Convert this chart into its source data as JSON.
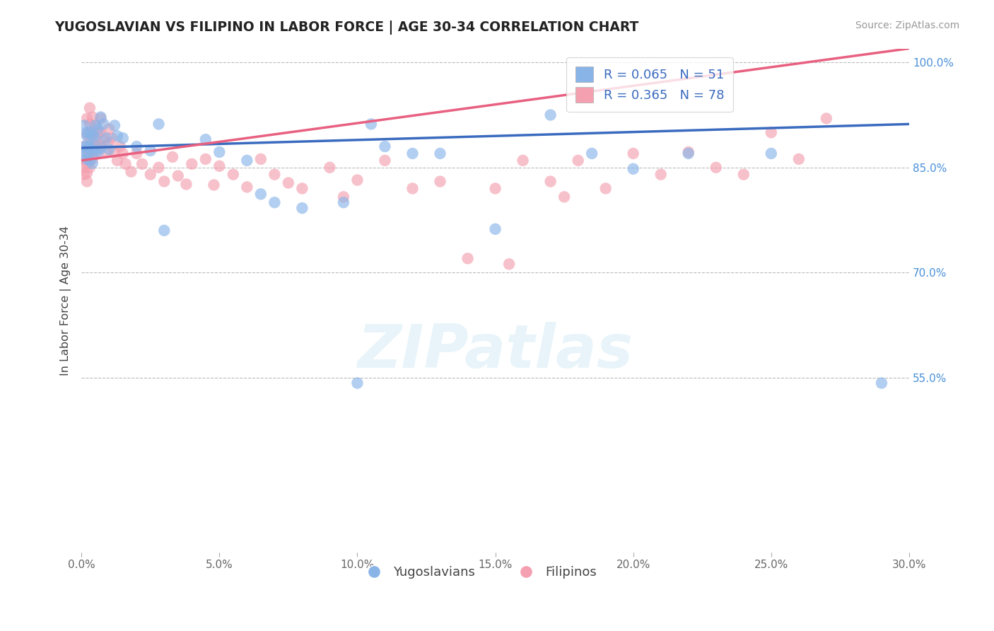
{
  "title": "YUGOSLAVIAN VS FILIPINO IN LABOR FORCE | AGE 30-34 CORRELATION CHART",
  "source": "Source: ZipAtlas.com",
  "ylabel": "In Labor Force | Age 30-34",
  "xlim": [
    0.0,
    0.3
  ],
  "ylim": [
    0.3,
    1.02
  ],
  "xticks": [
    0.0,
    0.05,
    0.1,
    0.15,
    0.2,
    0.25,
    0.3
  ],
  "xticklabels": [
    "0.0%",
    "5.0%",
    "10.0%",
    "15.0%",
    "20.0%",
    "25.0%",
    "30.0%"
  ],
  "yticks_right": [
    0.55,
    0.7,
    0.85,
    1.0
  ],
  "yticklabels_right": [
    "55.0%",
    "70.0%",
    "85.0%",
    "100.0%"
  ],
  "grid_yticks": [
    0.55,
    0.7,
    0.85,
    1.0
  ],
  "legend_yug": "Yugoslavians",
  "legend_fil": "Filipinos",
  "R_yug": "0.065",
  "N_yug": "51",
  "R_fil": "0.365",
  "N_fil": "78",
  "yug_color": "#89b4e8",
  "fil_color": "#f4a0b0",
  "yug_line_color": "#3a6bbf",
  "fil_line_color": "#e86080",
  "watermark_text": "ZIPatlas",
  "yug_x": [
    0.001,
    0.001,
    0.001,
    0.002,
    0.002,
    0.002,
    0.002,
    0.002,
    0.003,
    0.003,
    0.003,
    0.003,
    0.004,
    0.004,
    0.004,
    0.005,
    0.005,
    0.005,
    0.006,
    0.006,
    0.007,
    0.007,
    0.008,
    0.009,
    0.01,
    0.012,
    0.013,
    0.015,
    0.02,
    0.025,
    0.028,
    0.03,
    0.045,
    0.05,
    0.06,
    0.065,
    0.07,
    0.08,
    0.095,
    0.1,
    0.105,
    0.11,
    0.12,
    0.13,
    0.15,
    0.17,
    0.185,
    0.2,
    0.22,
    0.25,
    0.29
  ],
  "yug_y": [
    0.88,
    0.91,
    0.87,
    0.895,
    0.88,
    0.862,
    0.9,
    0.87,
    0.9,
    0.88,
    0.86,
    0.878,
    0.895,
    0.875,
    0.856,
    0.91,
    0.892,
    0.874,
    0.905,
    0.872,
    0.922,
    0.878,
    0.912,
    0.892,
    0.876,
    0.91,
    0.895,
    0.892,
    0.88,
    0.874,
    0.912,
    0.76,
    0.89,
    0.872,
    0.86,
    0.812,
    0.8,
    0.792,
    0.8,
    0.542,
    0.912,
    0.88,
    0.87,
    0.87,
    0.762,
    0.925,
    0.87,
    0.848,
    0.87,
    0.87,
    0.542
  ],
  "fil_x": [
    0.001,
    0.001,
    0.001,
    0.001,
    0.002,
    0.002,
    0.002,
    0.002,
    0.002,
    0.002,
    0.003,
    0.003,
    0.003,
    0.003,
    0.003,
    0.004,
    0.004,
    0.004,
    0.004,
    0.005,
    0.005,
    0.005,
    0.006,
    0.006,
    0.007,
    0.007,
    0.007,
    0.008,
    0.009,
    0.01,
    0.01,
    0.011,
    0.012,
    0.013,
    0.014,
    0.015,
    0.016,
    0.018,
    0.02,
    0.022,
    0.025,
    0.028,
    0.03,
    0.033,
    0.035,
    0.038,
    0.04,
    0.045,
    0.048,
    0.05,
    0.055,
    0.06,
    0.065,
    0.07,
    0.075,
    0.08,
    0.09,
    0.095,
    0.1,
    0.11,
    0.12,
    0.13,
    0.14,
    0.15,
    0.155,
    0.16,
    0.17,
    0.175,
    0.18,
    0.19,
    0.2,
    0.21,
    0.22,
    0.23,
    0.24,
    0.25,
    0.26,
    0.27
  ],
  "fil_y": [
    0.88,
    0.862,
    0.85,
    0.84,
    0.92,
    0.898,
    0.876,
    0.855,
    0.842,
    0.83,
    0.935,
    0.912,
    0.892,
    0.87,
    0.85,
    0.922,
    0.9,
    0.882,
    0.862,
    0.91,
    0.888,
    0.87,
    0.9,
    0.882,
    0.92,
    0.9,
    0.882,
    0.89,
    0.872,
    0.905,
    0.885,
    0.892,
    0.872,
    0.86,
    0.88,
    0.87,
    0.855,
    0.844,
    0.87,
    0.855,
    0.84,
    0.85,
    0.83,
    0.865,
    0.838,
    0.826,
    0.855,
    0.862,
    0.825,
    0.852,
    0.84,
    0.822,
    0.862,
    0.84,
    0.828,
    0.82,
    0.85,
    0.808,
    0.832,
    0.86,
    0.82,
    0.83,
    0.72,
    0.82,
    0.712,
    0.86,
    0.83,
    0.808,
    0.86,
    0.82,
    0.87,
    0.84,
    0.872,
    0.85,
    0.84,
    0.9,
    0.862,
    0.92
  ]
}
